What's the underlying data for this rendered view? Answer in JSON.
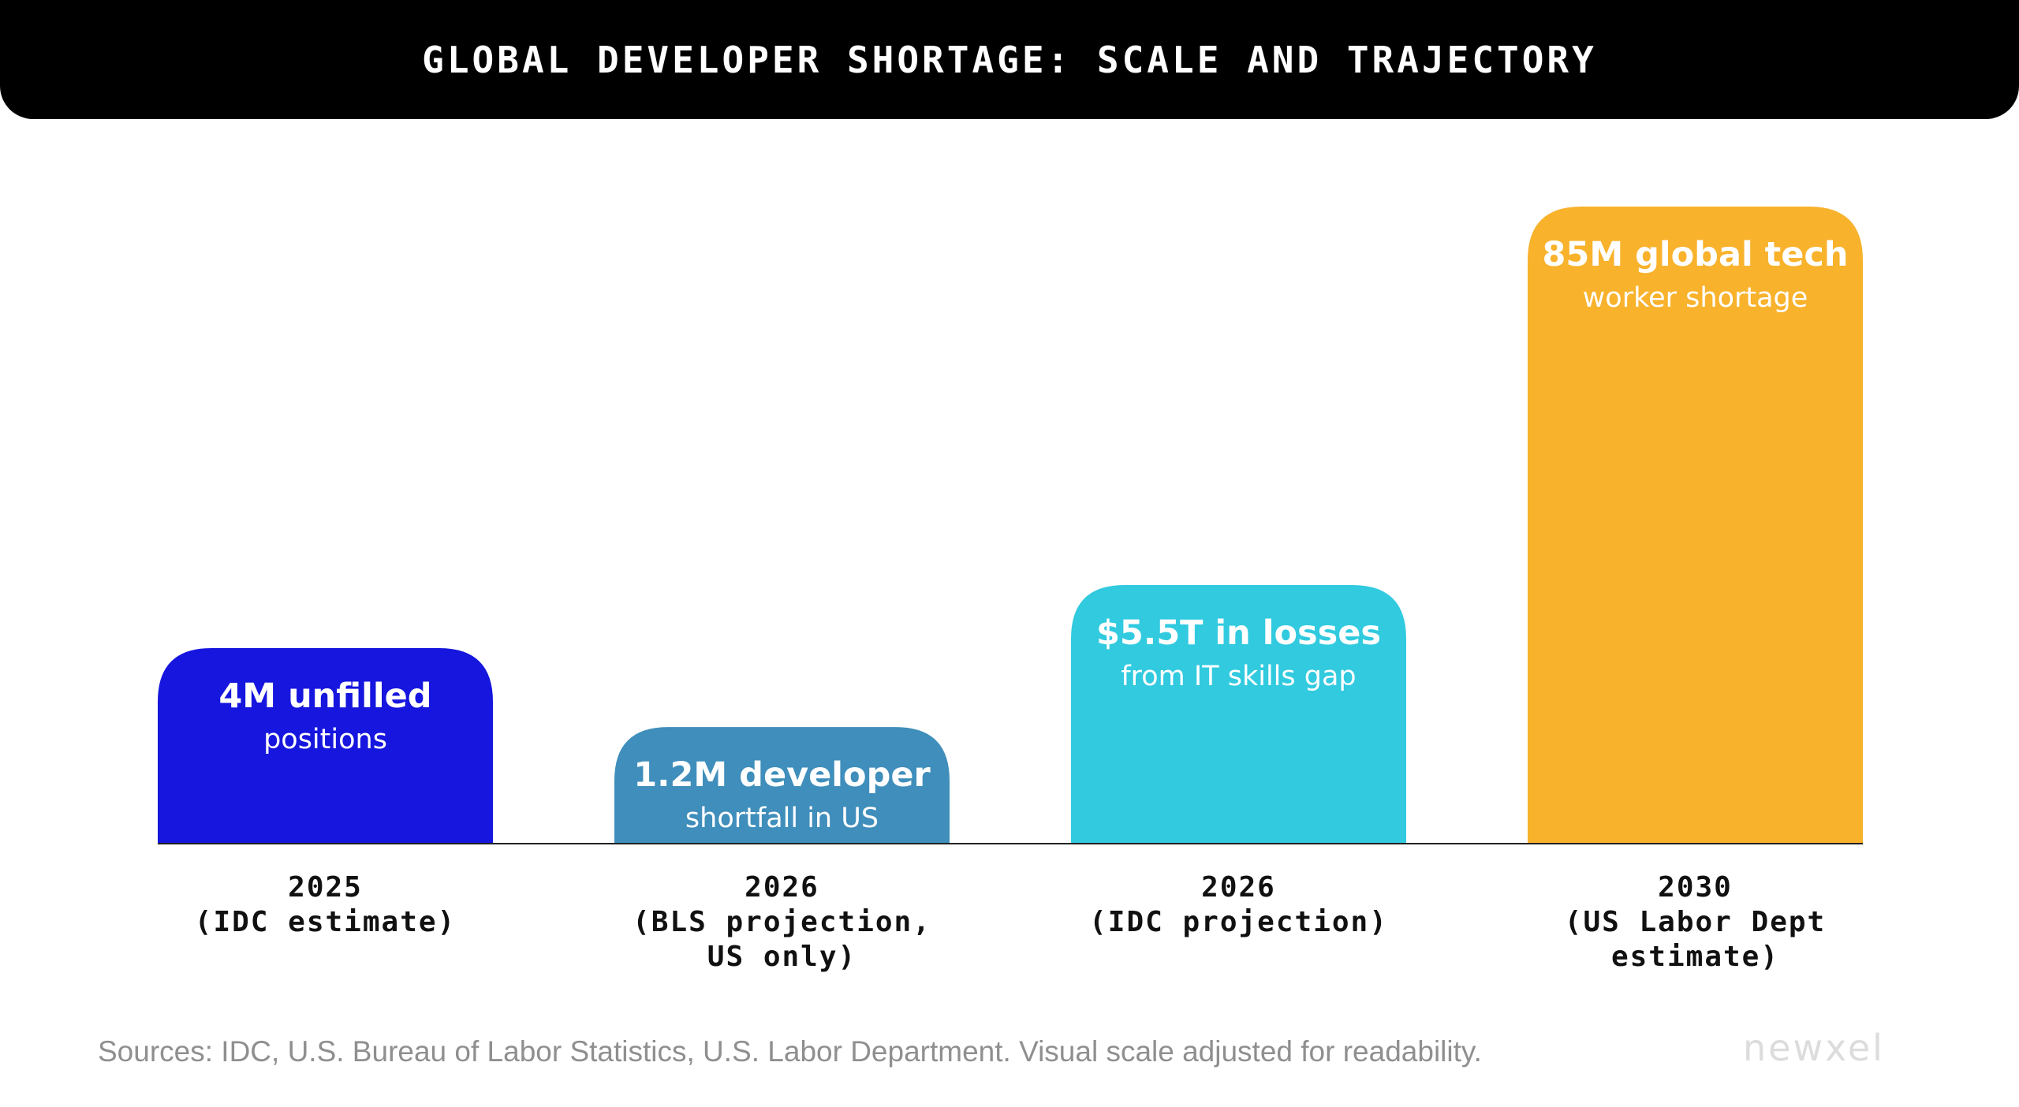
{
  "header": {
    "title": "GLOBAL DEVELOPER SHORTAGE: SCALE AND TRAJECTORY"
  },
  "chart_data": {
    "type": "bar",
    "title": "GLOBAL DEVELOPER SHORTAGE: SCALE AND TRAJECTORY",
    "xlabel": "",
    "ylabel": "",
    "grid": false,
    "legend": "none",
    "scale_note": "Visual scale adjusted for readability",
    "categories": [
      [
        "2025",
        "(IDC estimate)"
      ],
      [
        "2026",
        "(BLS projection,",
        "US only)"
      ],
      [
        "2026",
        "(IDC projection)"
      ],
      [
        "2030",
        "(US Labor Dept",
        "estimate)"
      ]
    ],
    "bars": [
      {
        "main": "4M unfilled",
        "sub": "positions",
        "level": 0.307,
        "color": "#1616DE"
      },
      {
        "main": "1.2M developer",
        "sub": "shortfall in US",
        "level": 0.183,
        "color": "#3F8EBB"
      },
      {
        "main": "$5.5T in losses",
        "sub": "from IT skills gap",
        "level": 0.406,
        "color": "#31CADF"
      },
      {
        "main": "85M global tech",
        "sub": "worker shortage",
        "level": 1.0,
        "color": "#F8B22C"
      }
    ]
  },
  "footer": {
    "sources": "Sources: IDC, U.S. Bureau of Labor Statistics, U.S. Labor Department. Visual scale adjusted for readability.",
    "logo": "newxel"
  }
}
